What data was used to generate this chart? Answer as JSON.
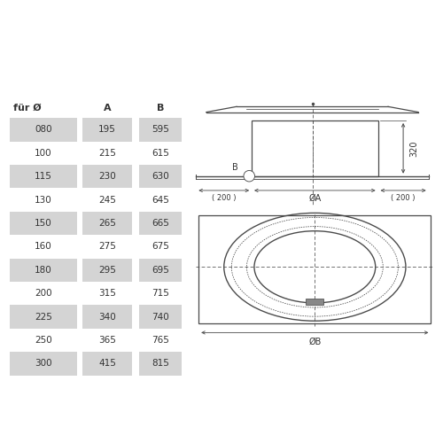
{
  "bg_color": "#ffffff",
  "table_header": [
    "für Ø",
    "A",
    "B"
  ],
  "table_rows": [
    [
      "080",
      "195",
      "595"
    ],
    [
      "100",
      "215",
      "615"
    ],
    [
      "115",
      "230",
      "630"
    ],
    [
      "130",
      "245",
      "645"
    ],
    [
      "150",
      "265",
      "665"
    ],
    [
      "160",
      "275",
      "675"
    ],
    [
      "180",
      "295",
      "695"
    ],
    [
      "200",
      "315",
      "715"
    ],
    [
      "225",
      "340",
      "740"
    ],
    [
      "250",
      "365",
      "765"
    ],
    [
      "300",
      "415",
      "815"
    ]
  ],
  "shaded_rows": [
    0,
    2,
    4,
    6,
    8,
    10
  ],
  "shade_color": "#d4d4d4",
  "line_color": "#4a4a4a",
  "text_color": "#333333"
}
